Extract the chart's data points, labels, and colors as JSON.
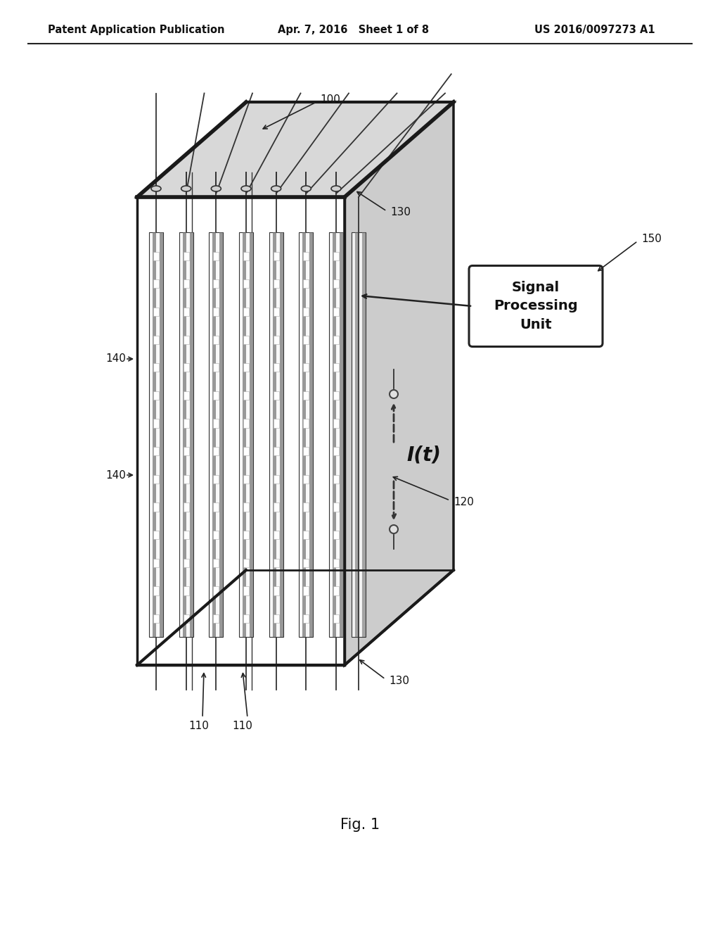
{
  "bg_color": "#ffffff",
  "header_left": "Patent Application Publication",
  "header_mid": "Apr. 7, 2016   Sheet 1 of 8",
  "header_right": "US 2016/0097273 A1",
  "fig_label": "Fig. 1",
  "label_100": "100",
  "label_110a": "110",
  "label_110b": "110",
  "label_120": "120",
  "label_130a": "130",
  "label_130b": "130",
  "label_140a": "140",
  "label_140b": "140",
  "label_150": "150",
  "signal_box_text": "Signal\nProcessing\nUnit",
  "It_label": "I(t)",
  "n_strings": 7,
  "n_sensors": 14,
  "frame_color": "#1a1a1a",
  "sensor_dark": "#606060",
  "sensor_light": "#f5f5f5",
  "sensor_body": "#ffffff",
  "cable_color": "#333333",
  "panel_face": "#f0f0f0",
  "panel_right": "#cccccc",
  "panel_top": "#e0e0e0"
}
